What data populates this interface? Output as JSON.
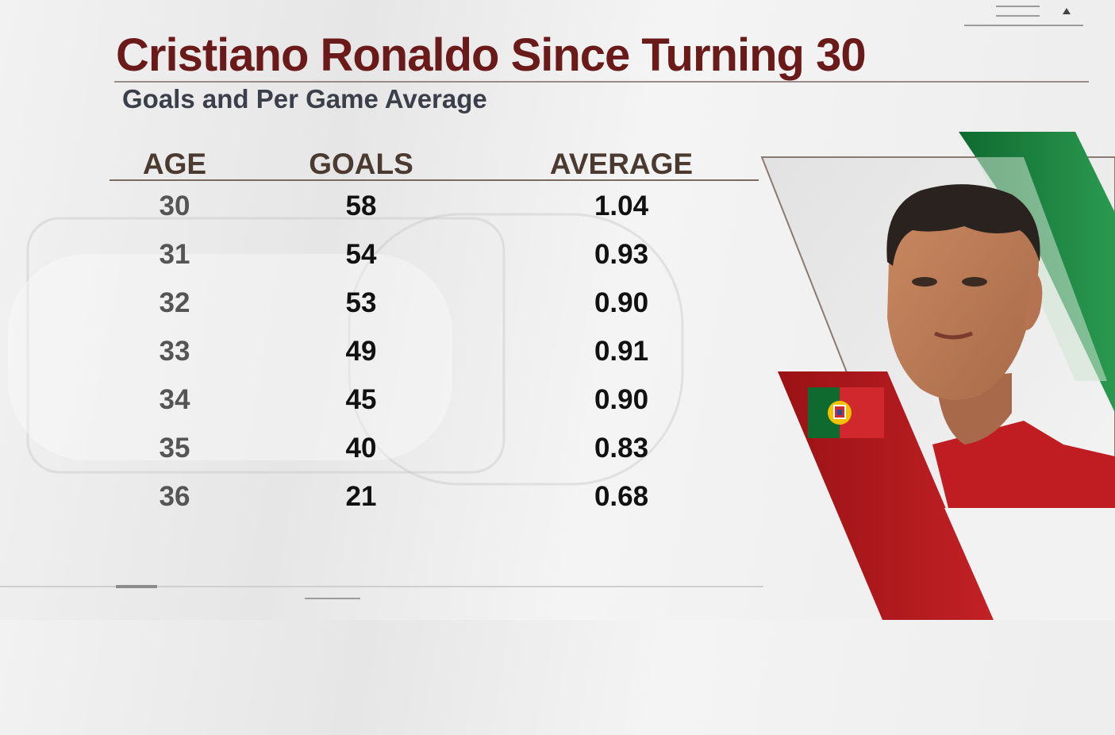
{
  "header": {
    "title": "Cristiano Ronaldo Since Turning 30",
    "subtitle": "Goals and Per Game Average"
  },
  "table": {
    "columns": [
      "AGE",
      "GOALS",
      "AVERAGE"
    ],
    "rows": [
      {
        "age": "30",
        "goals": "58",
        "average": "1.04"
      },
      {
        "age": "31",
        "goals": "54",
        "average": "0.93"
      },
      {
        "age": "32",
        "goals": "53",
        "average": "0.90"
      },
      {
        "age": "33",
        "goals": "49",
        "average": "0.91"
      },
      {
        "age": "34",
        "goals": "45",
        "average": "0.90"
      },
      {
        "age": "35",
        "goals": "40",
        "average": "0.83"
      },
      {
        "age": "36",
        "goals": "21",
        "average": "0.68"
      }
    ]
  },
  "colors": {
    "title": "#6b1a1a",
    "subtitle": "#3a3f4a",
    "portugal_green": "#1e7a3c",
    "portugal_red": "#b5191c"
  },
  "icons": {
    "flag": "portugal-flag-icon",
    "player": "player-photo"
  }
}
